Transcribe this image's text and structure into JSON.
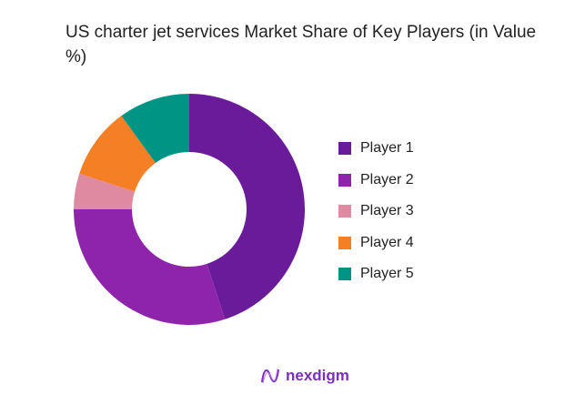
{
  "chart_data": {
    "type": "pie",
    "donut": true,
    "title": "US charter jet services Market Share of Key Players (in Value %)",
    "categories": [
      "Player 1",
      "Player 2",
      "Player 3",
      "Player 4",
      "Player 5"
    ],
    "values": [
      45,
      30,
      5,
      10,
      10
    ],
    "colors": [
      "#6a1b9a",
      "#8e24aa",
      "#de8aa0",
      "#f57f25",
      "#009485"
    ],
    "legend_placement": "right"
  },
  "brand": {
    "name": "nexdigm",
    "color": "#7b2fbe"
  }
}
